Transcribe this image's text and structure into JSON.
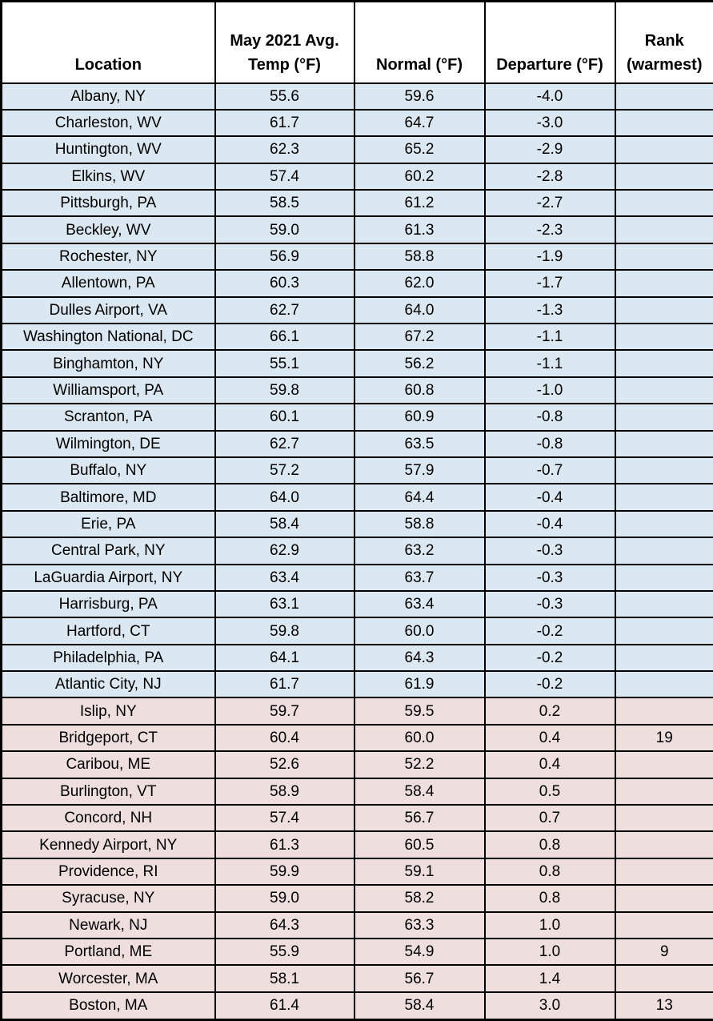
{
  "colors": {
    "cool_row_bg": "#dce8f1",
    "warm_row_bg": "#eedfde",
    "header_bg": "#ffffff",
    "border": "#000000",
    "text": "#000000"
  },
  "chart_data": {
    "type": "table",
    "columns": [
      "Location",
      "May 2021 Avg.\nTemp (°F)",
      "Normal (°F)",
      "Departure (°F)",
      "Rank\n(warmest)"
    ],
    "row_color_rule": "departure below 0 = cool blue row; departure 0 or above = warm pink row",
    "rows": [
      {
        "location": "Albany, NY",
        "temp": "55.6",
        "normal": "59.6",
        "departure": "-4.0",
        "rank": ""
      },
      {
        "location": "Charleston, WV",
        "temp": "61.7",
        "normal": "64.7",
        "departure": "-3.0",
        "rank": ""
      },
      {
        "location": "Huntington, WV",
        "temp": "62.3",
        "normal": "65.2",
        "departure": "-2.9",
        "rank": ""
      },
      {
        "location": "Elkins, WV",
        "temp": "57.4",
        "normal": "60.2",
        "departure": "-2.8",
        "rank": ""
      },
      {
        "location": "Pittsburgh, PA",
        "temp": "58.5",
        "normal": "61.2",
        "departure": "-2.7",
        "rank": ""
      },
      {
        "location": "Beckley, WV",
        "temp": "59.0",
        "normal": "61.3",
        "departure": "-2.3",
        "rank": ""
      },
      {
        "location": "Rochester, NY",
        "temp": "56.9",
        "normal": "58.8",
        "departure": "-1.9",
        "rank": ""
      },
      {
        "location": "Allentown, PA",
        "temp": "60.3",
        "normal": "62.0",
        "departure": "-1.7",
        "rank": ""
      },
      {
        "location": "Dulles Airport, VA",
        "temp": "62.7",
        "normal": "64.0",
        "departure": "-1.3",
        "rank": ""
      },
      {
        "location": "Washington National, DC",
        "temp": "66.1",
        "normal": "67.2",
        "departure": "-1.1",
        "rank": ""
      },
      {
        "location": "Binghamton, NY",
        "temp": "55.1",
        "normal": "56.2",
        "departure": "-1.1",
        "rank": ""
      },
      {
        "location": "Williamsport, PA",
        "temp": "59.8",
        "normal": "60.8",
        "departure": "-1.0",
        "rank": ""
      },
      {
        "location": "Scranton, PA",
        "temp": "60.1",
        "normal": "60.9",
        "departure": "-0.8",
        "rank": ""
      },
      {
        "location": "Wilmington, DE",
        "temp": "62.7",
        "normal": "63.5",
        "departure": "-0.8",
        "rank": ""
      },
      {
        "location": "Buffalo, NY",
        "temp": "57.2",
        "normal": "57.9",
        "departure": "-0.7",
        "rank": ""
      },
      {
        "location": "Baltimore, MD",
        "temp": "64.0",
        "normal": "64.4",
        "departure": "-0.4",
        "rank": ""
      },
      {
        "location": "Erie, PA",
        "temp": "58.4",
        "normal": "58.8",
        "departure": "-0.4",
        "rank": ""
      },
      {
        "location": "Central Park, NY",
        "temp": "62.9",
        "normal": "63.2",
        "departure": "-0.3",
        "rank": ""
      },
      {
        "location": "LaGuardia Airport, NY",
        "temp": "63.4",
        "normal": "63.7",
        "departure": "-0.3",
        "rank": ""
      },
      {
        "location": "Harrisburg, PA",
        "temp": "63.1",
        "normal": "63.4",
        "departure": "-0.3",
        "rank": ""
      },
      {
        "location": "Hartford, CT",
        "temp": "59.8",
        "normal": "60.0",
        "departure": "-0.2",
        "rank": ""
      },
      {
        "location": "Philadelphia, PA",
        "temp": "64.1",
        "normal": "64.3",
        "departure": "-0.2",
        "rank": ""
      },
      {
        "location": "Atlantic City, NJ",
        "temp": "61.7",
        "normal": "61.9",
        "departure": "-0.2",
        "rank": ""
      },
      {
        "location": "Islip, NY",
        "temp": "59.7",
        "normal": "59.5",
        "departure": "0.2",
        "rank": ""
      },
      {
        "location": "Bridgeport, CT",
        "temp": "60.4",
        "normal": "60.0",
        "departure": "0.4",
        "rank": "19"
      },
      {
        "location": "Caribou, ME",
        "temp": "52.6",
        "normal": "52.2",
        "departure": "0.4",
        "rank": ""
      },
      {
        "location": "Burlington, VT",
        "temp": "58.9",
        "normal": "58.4",
        "departure": "0.5",
        "rank": ""
      },
      {
        "location": "Concord, NH",
        "temp": "57.4",
        "normal": "56.7",
        "departure": "0.7",
        "rank": ""
      },
      {
        "location": "Kennedy Airport, NY",
        "temp": "61.3",
        "normal": "60.5",
        "departure": "0.8",
        "rank": ""
      },
      {
        "location": "Providence, RI",
        "temp": "59.9",
        "normal": "59.1",
        "departure": "0.8",
        "rank": ""
      },
      {
        "location": "Syracuse, NY",
        "temp": "59.0",
        "normal": "58.2",
        "departure": "0.8",
        "rank": ""
      },
      {
        "location": "Newark, NJ",
        "temp": "64.3",
        "normal": "63.3",
        "departure": "1.0",
        "rank": ""
      },
      {
        "location": "Portland, ME",
        "temp": "55.9",
        "normal": "54.9",
        "departure": "1.0",
        "rank": "9"
      },
      {
        "location": "Worcester, MA",
        "temp": "58.1",
        "normal": "56.7",
        "departure": "1.4",
        "rank": ""
      },
      {
        "location": "Boston, MA",
        "temp": "61.4",
        "normal": "58.4",
        "departure": "3.0",
        "rank": "13"
      }
    ]
  }
}
